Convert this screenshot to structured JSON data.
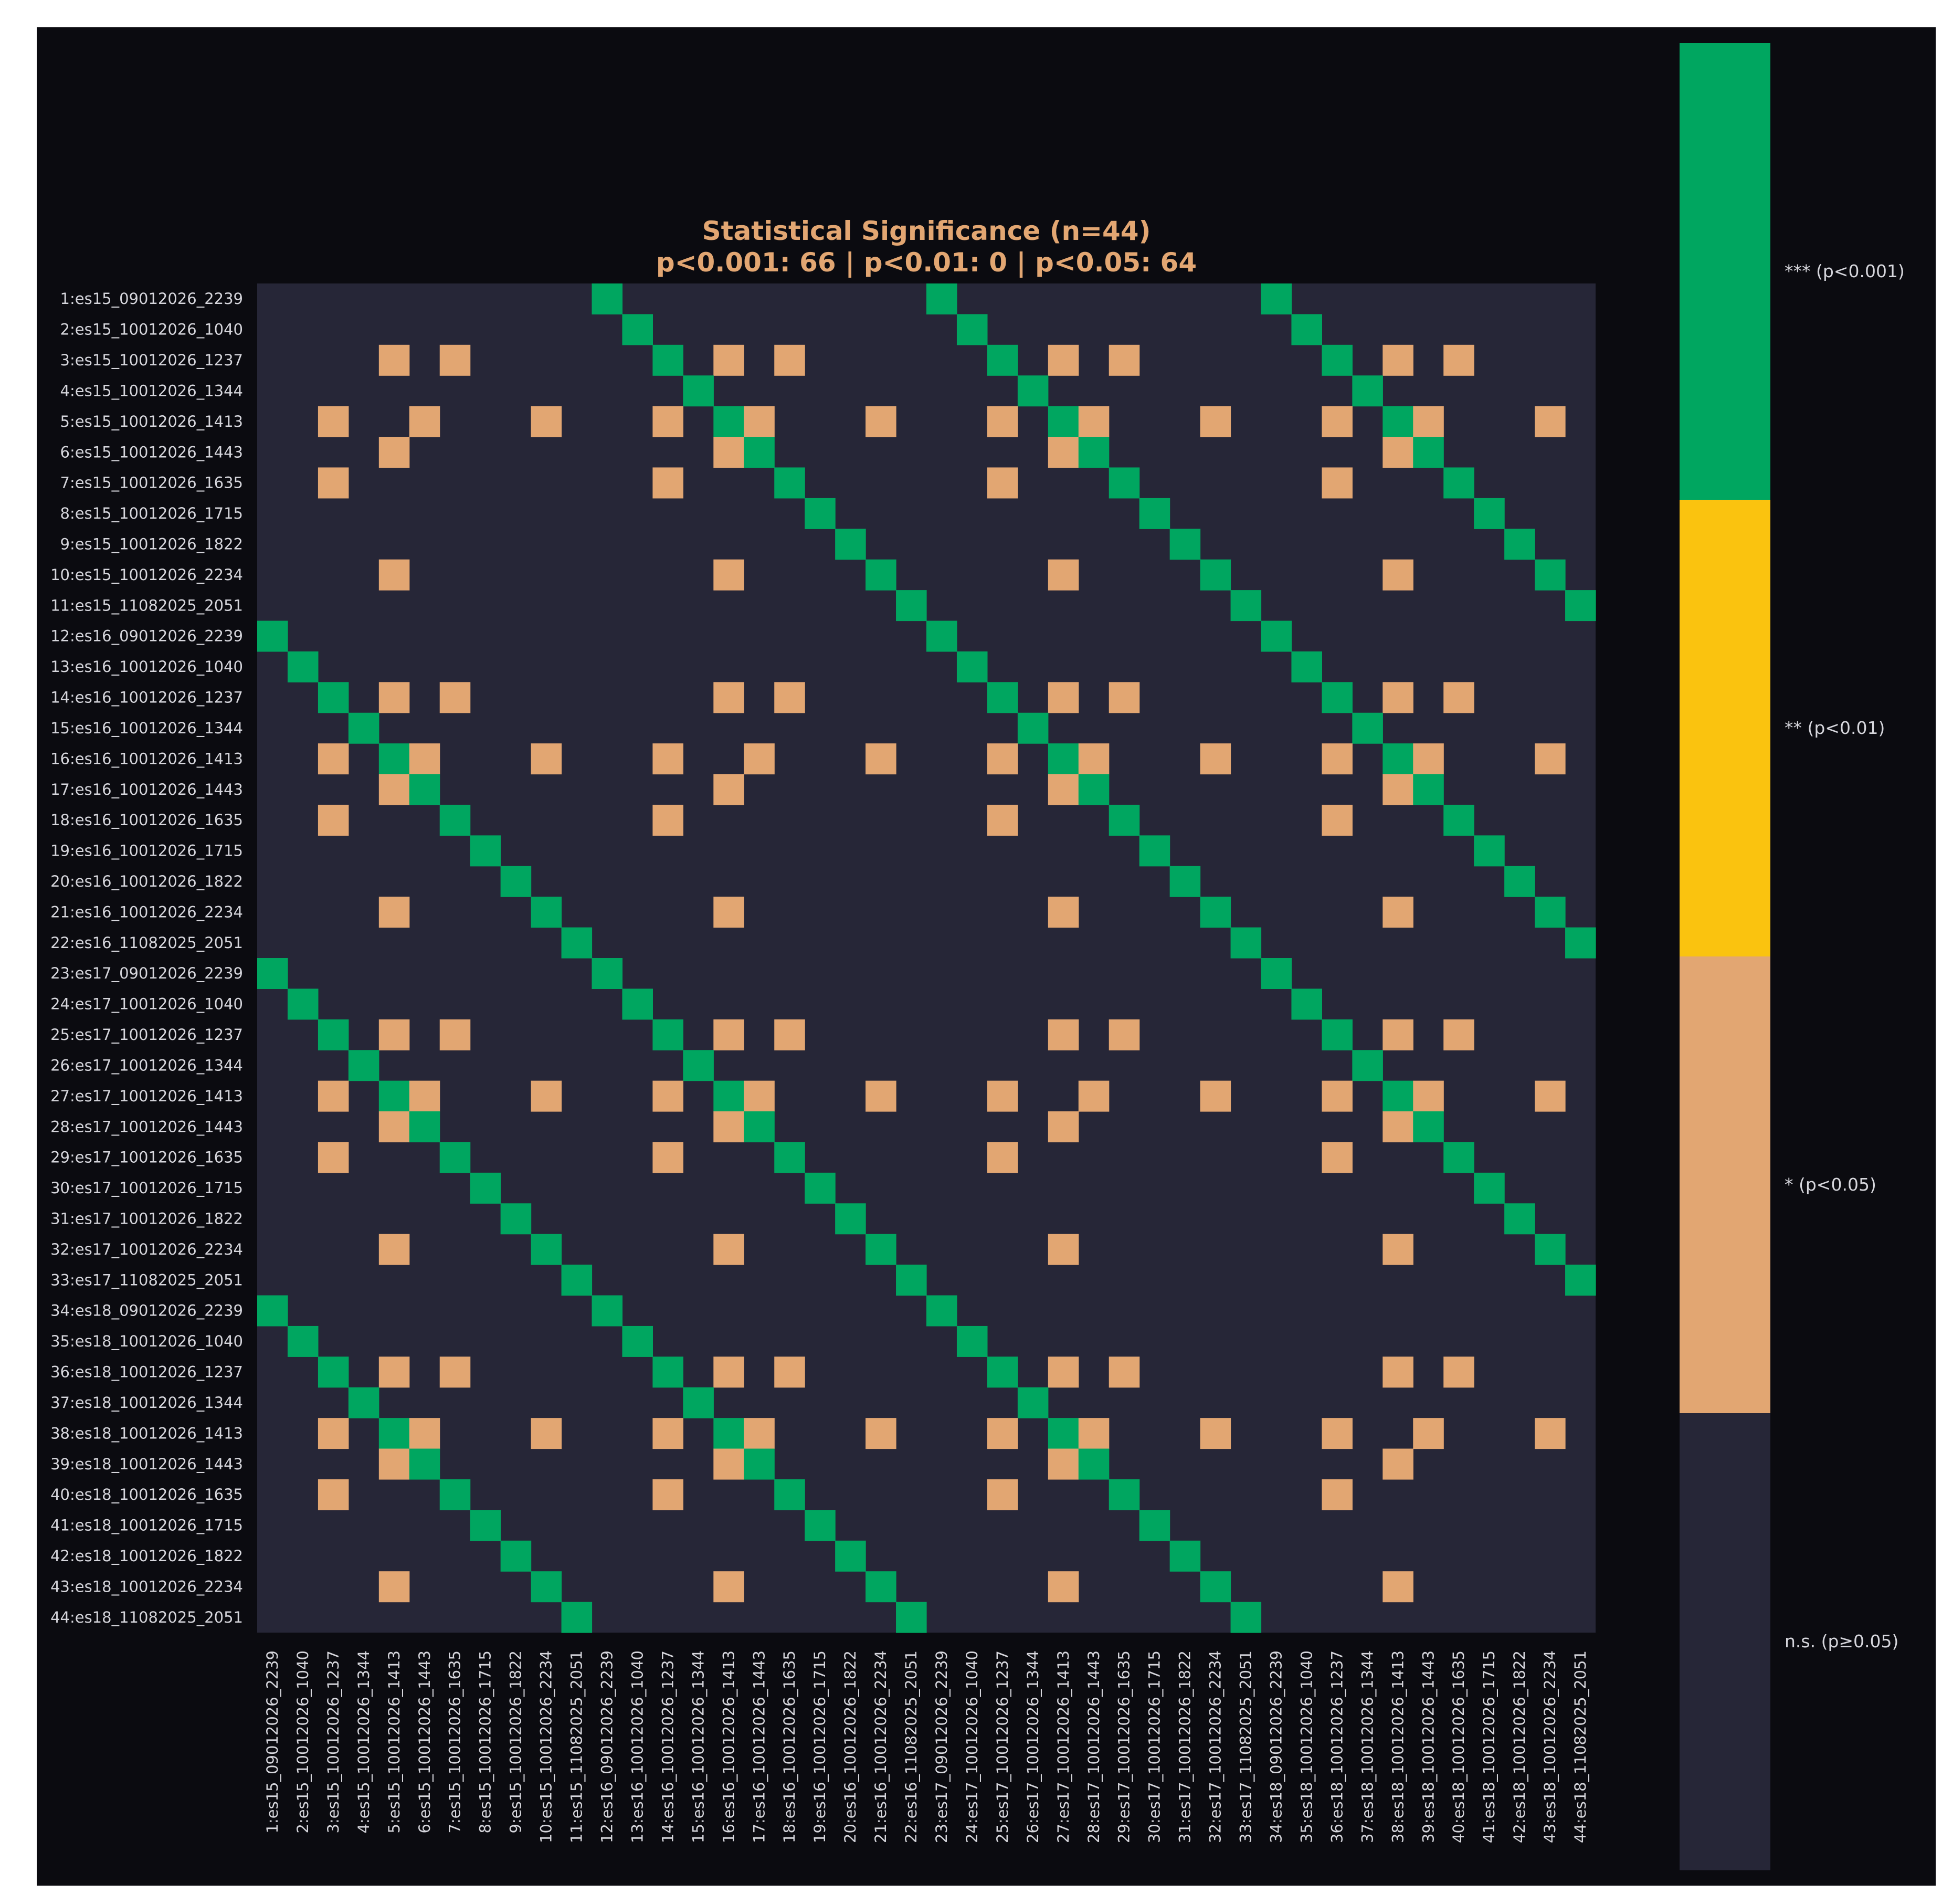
{
  "chart_data": {
    "type": "heatmap",
    "title": "Statistical Significance (n=44)",
    "subtitle": "p<0.001: 66 | p<0.01: 0 | p<0.05: 64",
    "labels": [
      "1:es15_09012026_2239",
      "2:es15_10012026_1040",
      "3:es15_10012026_1237",
      "4:es15_10012026_1344",
      "5:es15_10012026_1413",
      "6:es15_10012026_1443",
      "7:es15_10012026_1635",
      "8:es15_10012026_1715",
      "9:es15_10012026_1822",
      "10:es15_10012026_2234",
      "11:es15_11082025_2051",
      "12:es16_09012026_2239",
      "13:es16_10012026_1040",
      "14:es16_10012026_1237",
      "15:es16_10012026_1344",
      "16:es16_10012026_1413",
      "17:es16_10012026_1443",
      "18:es16_10012026_1635",
      "19:es16_10012026_1715",
      "20:es16_10012026_1822",
      "21:es16_10012026_2234",
      "22:es16_11082025_2051",
      "23:es17_09012026_2239",
      "24:es17_10012026_1040",
      "25:es17_10012026_1237",
      "26:es17_10012026_1344",
      "27:es17_10012026_1413",
      "28:es17_10012026_1443",
      "29:es17_10012026_1635",
      "30:es17_10012026_1715",
      "31:es17_10012026_1822",
      "32:es17_10012026_2234",
      "33:es17_11082025_2051",
      "34:es18_09012026_2239",
      "35:es18_10012026_1040",
      "36:es18_10012026_1237",
      "37:es18_10012026_1344",
      "38:es18_10012026_1413",
      "39:es18_10012026_1443",
      "40:es18_10012026_1635",
      "41:es18_10012026_1715",
      "42:es18_10012026_1822",
      "43:es18_10012026_2234",
      "44:es18_11082025_2051"
    ],
    "levels": [
      {
        "value": 0,
        "label": "n.s. (p≥0.05)",
        "color": "#262637"
      },
      {
        "value": 1,
        "label": "* (p<0.05)",
        "color": "#e2a672"
      },
      {
        "value": 2,
        "label": "** (p<0.01)",
        "color": "#fac30f"
      },
      {
        "value": 3,
        "label": "*** (p<0.001)",
        "color": "#00a660"
      }
    ],
    "cells": [
      [
        0,
        11,
        3
      ],
      [
        0,
        22,
        3
      ],
      [
        0,
        33,
        3
      ],
      [
        1,
        12,
        3
      ],
      [
        1,
        23,
        3
      ],
      [
        1,
        34,
        3
      ],
      [
        2,
        4,
        1
      ],
      [
        2,
        6,
        1
      ],
      [
        2,
        13,
        3
      ],
      [
        2,
        15,
        1
      ],
      [
        2,
        17,
        1
      ],
      [
        2,
        24,
        3
      ],
      [
        2,
        26,
        1
      ],
      [
        2,
        28,
        1
      ],
      [
        2,
        35,
        3
      ],
      [
        2,
        37,
        1
      ],
      [
        2,
        39,
        1
      ],
      [
        3,
        14,
        3
      ],
      [
        3,
        25,
        3
      ],
      [
        3,
        36,
        3
      ],
      [
        4,
        2,
        1
      ],
      [
        4,
        5,
        1
      ],
      [
        4,
        9,
        1
      ],
      [
        4,
        13,
        1
      ],
      [
        4,
        15,
        3
      ],
      [
        4,
        16,
        1
      ],
      [
        4,
        20,
        1
      ],
      [
        4,
        24,
        1
      ],
      [
        4,
        26,
        3
      ],
      [
        4,
        27,
        1
      ],
      [
        4,
        31,
        1
      ],
      [
        4,
        35,
        1
      ],
      [
        4,
        37,
        3
      ],
      [
        4,
        38,
        1
      ],
      [
        4,
        42,
        1
      ],
      [
        5,
        4,
        1
      ],
      [
        5,
        15,
        1
      ],
      [
        5,
        16,
        3
      ],
      [
        5,
        26,
        1
      ],
      [
        5,
        27,
        3
      ],
      [
        5,
        37,
        1
      ],
      [
        5,
        38,
        3
      ],
      [
        6,
        2,
        1
      ],
      [
        6,
        13,
        1
      ],
      [
        6,
        17,
        3
      ],
      [
        6,
        24,
        1
      ],
      [
        6,
        28,
        3
      ],
      [
        6,
        35,
        1
      ],
      [
        6,
        39,
        3
      ],
      [
        7,
        18,
        3
      ],
      [
        7,
        29,
        3
      ],
      [
        7,
        40,
        3
      ],
      [
        8,
        19,
        3
      ],
      [
        8,
        30,
        3
      ],
      [
        8,
        41,
        3
      ],
      [
        9,
        4,
        1
      ],
      [
        9,
        15,
        1
      ],
      [
        9,
        20,
        3
      ],
      [
        9,
        26,
        1
      ],
      [
        9,
        31,
        3
      ],
      [
        9,
        37,
        1
      ],
      [
        9,
        42,
        3
      ],
      [
        10,
        21,
        3
      ],
      [
        10,
        32,
        3
      ],
      [
        10,
        43,
        3
      ],
      [
        11,
        0,
        3
      ],
      [
        11,
        22,
        3
      ],
      [
        11,
        33,
        3
      ],
      [
        12,
        1,
        3
      ],
      [
        12,
        23,
        3
      ],
      [
        12,
        34,
        3
      ],
      [
        13,
        2,
        3
      ],
      [
        13,
        4,
        1
      ],
      [
        13,
        6,
        1
      ],
      [
        13,
        15,
        1
      ],
      [
        13,
        17,
        1
      ],
      [
        13,
        24,
        3
      ],
      [
        13,
        26,
        1
      ],
      [
        13,
        28,
        1
      ],
      [
        13,
        35,
        3
      ],
      [
        13,
        37,
        1
      ],
      [
        13,
        39,
        1
      ],
      [
        14,
        3,
        3
      ],
      [
        14,
        25,
        3
      ],
      [
        14,
        36,
        3
      ],
      [
        15,
        2,
        1
      ],
      [
        15,
        4,
        3
      ],
      [
        15,
        5,
        1
      ],
      [
        15,
        9,
        1
      ],
      [
        15,
        13,
        1
      ],
      [
        15,
        16,
        1
      ],
      [
        15,
        20,
        1
      ],
      [
        15,
        24,
        1
      ],
      [
        15,
        26,
        3
      ],
      [
        15,
        27,
        1
      ],
      [
        15,
        31,
        1
      ],
      [
        15,
        35,
        1
      ],
      [
        15,
        37,
        3
      ],
      [
        15,
        38,
        1
      ],
      [
        15,
        42,
        1
      ],
      [
        16,
        4,
        1
      ],
      [
        16,
        5,
        3
      ],
      [
        16,
        15,
        1
      ],
      [
        16,
        26,
        1
      ],
      [
        16,
        27,
        3
      ],
      [
        16,
        37,
        1
      ],
      [
        16,
        38,
        3
      ],
      [
        17,
        2,
        1
      ],
      [
        17,
        6,
        3
      ],
      [
        17,
        13,
        1
      ],
      [
        17,
        24,
        1
      ],
      [
        17,
        28,
        3
      ],
      [
        17,
        35,
        1
      ],
      [
        17,
        39,
        3
      ],
      [
        18,
        7,
        3
      ],
      [
        18,
        29,
        3
      ],
      [
        18,
        40,
        3
      ],
      [
        19,
        8,
        3
      ],
      [
        19,
        30,
        3
      ],
      [
        19,
        41,
        3
      ],
      [
        20,
        4,
        1
      ],
      [
        20,
        9,
        3
      ],
      [
        20,
        15,
        1
      ],
      [
        20,
        26,
        1
      ],
      [
        20,
        31,
        3
      ],
      [
        20,
        37,
        1
      ],
      [
        20,
        42,
        3
      ],
      [
        21,
        10,
        3
      ],
      [
        21,
        32,
        3
      ],
      [
        21,
        43,
        3
      ],
      [
        22,
        0,
        3
      ],
      [
        22,
        11,
        3
      ],
      [
        22,
        33,
        3
      ],
      [
        23,
        1,
        3
      ],
      [
        23,
        12,
        3
      ],
      [
        23,
        34,
        3
      ],
      [
        24,
        2,
        3
      ],
      [
        24,
        4,
        1
      ],
      [
        24,
        6,
        1
      ],
      [
        24,
        13,
        3
      ],
      [
        24,
        15,
        1
      ],
      [
        24,
        17,
        1
      ],
      [
        24,
        26,
        1
      ],
      [
        24,
        28,
        1
      ],
      [
        24,
        35,
        3
      ],
      [
        24,
        37,
        1
      ],
      [
        24,
        39,
        1
      ],
      [
        25,
        3,
        3
      ],
      [
        25,
        14,
        3
      ],
      [
        25,
        36,
        3
      ],
      [
        26,
        2,
        1
      ],
      [
        26,
        4,
        3
      ],
      [
        26,
        5,
        1
      ],
      [
        26,
        9,
        1
      ],
      [
        26,
        13,
        1
      ],
      [
        26,
        15,
        3
      ],
      [
        26,
        16,
        1
      ],
      [
        26,
        20,
        1
      ],
      [
        26,
        24,
        1
      ],
      [
        26,
        27,
        1
      ],
      [
        26,
        31,
        1
      ],
      [
        26,
        35,
        1
      ],
      [
        26,
        37,
        3
      ],
      [
        26,
        38,
        1
      ],
      [
        26,
        42,
        1
      ],
      [
        27,
        4,
        1
      ],
      [
        27,
        5,
        3
      ],
      [
        27,
        15,
        1
      ],
      [
        27,
        16,
        3
      ],
      [
        27,
        26,
        1
      ],
      [
        27,
        37,
        1
      ],
      [
        27,
        38,
        3
      ],
      [
        28,
        2,
        1
      ],
      [
        28,
        6,
        3
      ],
      [
        28,
        13,
        1
      ],
      [
        28,
        17,
        3
      ],
      [
        28,
        24,
        1
      ],
      [
        28,
        35,
        1
      ],
      [
        28,
        39,
        3
      ],
      [
        29,
        7,
        3
      ],
      [
        29,
        18,
        3
      ],
      [
        29,
        40,
        3
      ],
      [
        30,
        8,
        3
      ],
      [
        30,
        19,
        3
      ],
      [
        30,
        41,
        3
      ],
      [
        31,
        4,
        1
      ],
      [
        31,
        9,
        3
      ],
      [
        31,
        15,
        1
      ],
      [
        31,
        20,
        3
      ],
      [
        31,
        26,
        1
      ],
      [
        31,
        37,
        1
      ],
      [
        31,
        42,
        3
      ],
      [
        32,
        10,
        3
      ],
      [
        32,
        21,
        3
      ],
      [
        32,
        43,
        3
      ],
      [
        33,
        0,
        3
      ],
      [
        33,
        11,
        3
      ],
      [
        33,
        22,
        3
      ],
      [
        34,
        1,
        3
      ],
      [
        34,
        12,
        3
      ],
      [
        34,
        23,
        3
      ],
      [
        35,
        2,
        3
      ],
      [
        35,
        4,
        1
      ],
      [
        35,
        6,
        1
      ],
      [
        35,
        13,
        3
      ],
      [
        35,
        15,
        1
      ],
      [
        35,
        17,
        1
      ],
      [
        35,
        24,
        3
      ],
      [
        35,
        26,
        1
      ],
      [
        35,
        28,
        1
      ],
      [
        35,
        37,
        1
      ],
      [
        35,
        39,
        1
      ],
      [
        36,
        3,
        3
      ],
      [
        36,
        14,
        3
      ],
      [
        36,
        25,
        3
      ],
      [
        37,
        2,
        1
      ],
      [
        37,
        4,
        3
      ],
      [
        37,
        5,
        1
      ],
      [
        37,
        9,
        1
      ],
      [
        37,
        13,
        1
      ],
      [
        37,
        15,
        3
      ],
      [
        37,
        16,
        1
      ],
      [
        37,
        20,
        1
      ],
      [
        37,
        24,
        1
      ],
      [
        37,
        26,
        3
      ],
      [
        37,
        27,
        1
      ],
      [
        37,
        31,
        1
      ],
      [
        37,
        35,
        1
      ],
      [
        37,
        38,
        1
      ],
      [
        37,
        42,
        1
      ],
      [
        38,
        4,
        1
      ],
      [
        38,
        5,
        3
      ],
      [
        38,
        15,
        1
      ],
      [
        38,
        16,
        3
      ],
      [
        38,
        26,
        1
      ],
      [
        38,
        27,
        3
      ],
      [
        38,
        37,
        1
      ],
      [
        39,
        2,
        1
      ],
      [
        39,
        6,
        3
      ],
      [
        39,
        13,
        1
      ],
      [
        39,
        17,
        3
      ],
      [
        39,
        24,
        1
      ],
      [
        39,
        28,
        3
      ],
      [
        39,
        35,
        1
      ],
      [
        40,
        7,
        3
      ],
      [
        40,
        18,
        3
      ],
      [
        40,
        29,
        3
      ],
      [
        41,
        8,
        3
      ],
      [
        41,
        19,
        3
      ],
      [
        41,
        30,
        3
      ],
      [
        42,
        4,
        1
      ],
      [
        42,
        9,
        3
      ],
      [
        42,
        15,
        1
      ],
      [
        42,
        20,
        3
      ],
      [
        42,
        26,
        1
      ],
      [
        42,
        31,
        3
      ],
      [
        42,
        37,
        1
      ],
      [
        43,
        10,
        3
      ],
      [
        43,
        21,
        3
      ],
      [
        43,
        32,
        3
      ]
    ]
  },
  "colors": {
    "figure_background": "#0b0b10",
    "title": "#e2a672",
    "tick_text": "#d6d6dc"
  }
}
